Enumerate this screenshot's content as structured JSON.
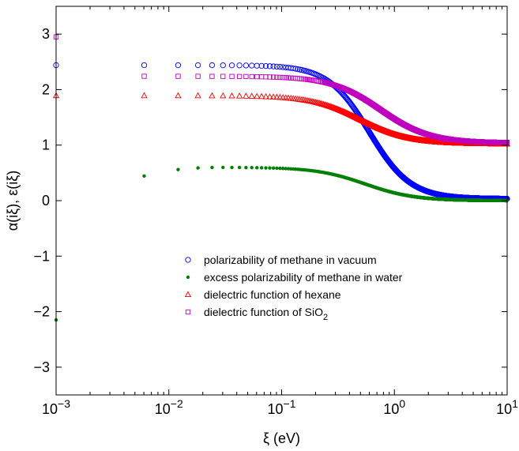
{
  "chart_data": {
    "type": "scatter",
    "xscale": "log",
    "xlim": [
      0.001,
      10
    ],
    "ylim": [
      -3.5,
      3.5
    ],
    "xticks": [
      0.001,
      0.01,
      0.1,
      1,
      10
    ],
    "xtick_labels": [
      {
        "base": "10",
        "exp": "−3"
      },
      {
        "base": "10",
        "exp": "−2"
      },
      {
        "base": "10",
        "exp": "−1"
      },
      {
        "base": "10",
        "exp": "0"
      },
      {
        "base": "10",
        "exp": "1"
      }
    ],
    "yticks": [
      -3,
      -2,
      -1,
      0,
      1,
      2,
      3
    ],
    "ytick_labels": [
      "−3",
      "−2",
      "−1",
      "0",
      "1",
      "2",
      "3"
    ],
    "xlabel": "ξ (eV)",
    "ylabel": "α(iξ), ε(iξ)",
    "grid": false,
    "legend_position": "lower-right",
    "series": [
      {
        "name": "polarizability of methane in vacuum",
        "marker": "circle-open",
        "color": "#0000ff",
        "x0": 0.001,
        "y0": 2.44,
        "plateau": 2.44,
        "limit": 0.03,
        "center": 0.6,
        "width": 0.42
      },
      {
        "name": "excess polarizability of methane in water",
        "marker": "dot",
        "color": "#008000",
        "x0": 0.001,
        "y0": -2.15,
        "plateau": 0.6,
        "limit": 0.0,
        "center": 0.55,
        "width": 0.5
      },
      {
        "name": "dielectric function of hexane",
        "marker": "triangle-open",
        "color": "#ff0000",
        "x0": 0.001,
        "y0": 1.89,
        "plateau": 1.89,
        "limit": 1.02,
        "center": 0.5,
        "width": 0.5
      },
      {
        "name_parts": [
          "dielectric function of SiO",
          "2"
        ],
        "marker": "square-open",
        "color": "#bf00bf",
        "x0": 0.001,
        "y0": 2.95,
        "plateau": 2.24,
        "limit": 1.04,
        "center": 0.75,
        "width": 0.5
      }
    ]
  }
}
